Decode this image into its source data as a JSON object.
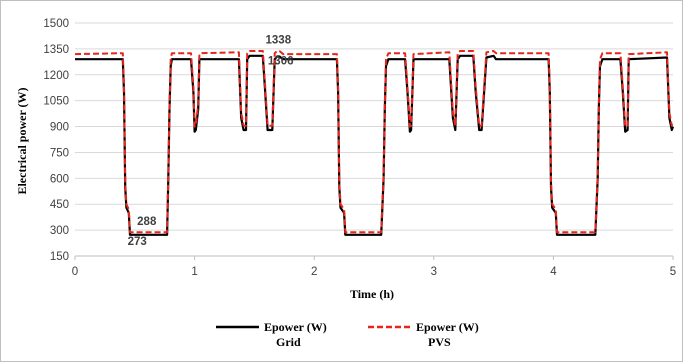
{
  "chart_data": {
    "type": "line",
    "title": "",
    "xlabel": "Time (h)",
    "ylabel": "Electrical power (W)",
    "xlim": [
      0,
      5
    ],
    "ylim": [
      150,
      1500
    ],
    "xticks": [
      0,
      1,
      2,
      3,
      4,
      5
    ],
    "yticks": [
      150,
      300,
      450,
      600,
      750,
      900,
      1050,
      1200,
      1350,
      1500
    ],
    "grid": "horizontal",
    "legend_position": "bottom",
    "series": [
      {
        "name": "Epower (W)",
        "name_line2": "Grid",
        "color": "#000000",
        "style": "solid",
        "x": [
          0,
          0.4,
          0.41,
          0.42,
          0.43,
          0.45,
          0.46,
          0.54,
          0.77,
          0.78,
          0.79,
          0.8,
          0.81,
          0.97,
          0.99,
          1.0,
          1.01,
          1.03,
          1.04,
          1.05,
          1.37,
          1.39,
          1.41,
          1.43,
          1.44,
          1.46,
          1.57,
          1.59,
          1.61,
          1.62,
          1.65,
          1.67,
          1.69,
          1.71,
          1.74,
          1.76,
          2.19,
          2.2,
          2.21,
          2.22,
          2.25,
          2.26,
          2.56,
          2.58,
          2.59,
          2.6,
          2.62,
          2.76,
          2.78,
          2.8,
          2.81,
          2.83,
          3.13,
          3.16,
          3.18,
          3.2,
          3.22,
          3.33,
          3.35,
          3.38,
          3.4,
          3.44,
          3.5,
          3.52,
          3.54,
          3.96,
          3.97,
          3.98,
          3.99,
          4.02,
          4.03,
          4.35,
          4.37,
          4.38,
          4.39,
          4.41,
          4.56,
          4.58,
          4.6,
          4.62,
          4.63,
          4.95,
          4.97,
          4.99,
          5.0
        ],
        "y": [
          1290,
          1290,
          1100,
          550,
          430,
          400,
          273,
          273,
          273,
          600,
          1000,
          1250,
          1290,
          1290,
          1100,
          870,
          880,
          1000,
          1290,
          1290,
          1290,
          950,
          880,
          880,
          1290,
          1310,
          1310,
          1100,
          880,
          880,
          880,
          1290,
          1306,
          1306,
          1290,
          1290,
          1290,
          1100,
          550,
          430,
          400,
          273,
          273,
          600,
          1000,
          1250,
          1290,
          1290,
          1100,
          870,
          880,
          1290,
          1290,
          950,
          880,
          1290,
          1310,
          1310,
          1100,
          880,
          880,
          1300,
          1310,
          1290,
          1290,
          1290,
          1100,
          550,
          430,
          400,
          273,
          273,
          600,
          1000,
          1250,
          1290,
          1290,
          1100,
          870,
          880,
          1290,
          1300,
          950,
          880,
          900
        ]
      },
      {
        "name": "Epower (W)",
        "name_line2": "PVS",
        "color": "#e8251b",
        "style": "dashed",
        "x": [
          0,
          0.4,
          0.41,
          0.42,
          0.43,
          0.45,
          0.46,
          0.54,
          0.77,
          0.78,
          0.79,
          0.8,
          0.81,
          0.97,
          0.99,
          1.0,
          1.01,
          1.03,
          1.04,
          1.05,
          1.37,
          1.39,
          1.41,
          1.43,
          1.44,
          1.46,
          1.57,
          1.59,
          1.61,
          1.62,
          1.65,
          1.67,
          1.69,
          1.71,
          1.74,
          1.76,
          2.19,
          2.2,
          2.21,
          2.22,
          2.25,
          2.26,
          2.56,
          2.58,
          2.59,
          2.6,
          2.62,
          2.76,
          2.78,
          2.8,
          2.81,
          2.83,
          3.13,
          3.16,
          3.18,
          3.2,
          3.22,
          3.33,
          3.35,
          3.38,
          3.4,
          3.44,
          3.5,
          3.52,
          3.54,
          3.96,
          3.97,
          3.98,
          3.99,
          4.02,
          4.03,
          4.35,
          4.37,
          4.38,
          4.39,
          4.41,
          4.56,
          4.58,
          4.6,
          4.62,
          4.63,
          4.95,
          4.97,
          4.99,
          5.0
        ],
        "y": [
          1320,
          1325,
          1130,
          580,
          450,
          420,
          288,
          288,
          288,
          620,
          1020,
          1290,
          1325,
          1325,
          1130,
          900,
          905,
          1030,
          1320,
          1325,
          1330,
          980,
          905,
          905,
          1325,
          1338,
          1338,
          1130,
          905,
          905,
          905,
          1325,
          1338,
          1338,
          1320,
          1320,
          1320,
          1130,
          580,
          450,
          420,
          288,
          288,
          620,
          1020,
          1290,
          1325,
          1325,
          1130,
          900,
          905,
          1320,
          1330,
          980,
          905,
          1325,
          1338,
          1338,
          1130,
          905,
          905,
          1330,
          1338,
          1325,
          1325,
          1325,
          1130,
          580,
          450,
          420,
          288,
          288,
          620,
          1020,
          1290,
          1325,
          1325,
          1130,
          900,
          905,
          1320,
          1330,
          980,
          905,
          930
        ]
      }
    ],
    "annotations": [
      {
        "text": "288",
        "x": 0.6,
        "y": 330
      },
      {
        "text": "273",
        "x": 0.52,
        "y": 215
      },
      {
        "text": "1338",
        "x": 1.7,
        "y": 1380
      },
      {
        "text": "1306",
        "x": 1.72,
        "y": 1260
      }
    ]
  }
}
